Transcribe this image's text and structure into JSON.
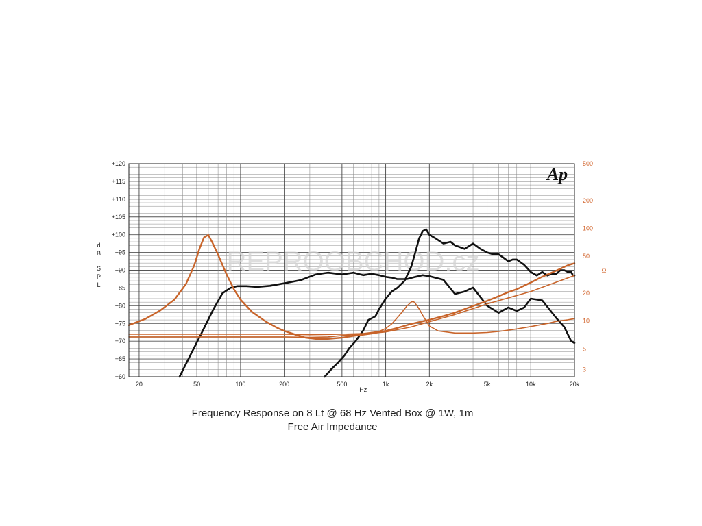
{
  "chart_data": {
    "type": "line",
    "title": "Frequency Response on 8 Lt @ 68 Hz Vented Box @ 1W, 1m",
    "subtitle": "Free Air Impedance",
    "xlabel": "Hz",
    "ylabel": [
      "d",
      "B",
      "S",
      "P",
      "L"
    ],
    "y2label": "Ω",
    "logo": "Ap",
    "watermark": "REPROOBCHOD.cz",
    "x_scale": "log",
    "xlim": [
      17,
      20000
    ],
    "ylim": [
      60,
      120
    ],
    "y2_scale": "log",
    "y2lim": [
      2.5,
      500
    ],
    "grid": true,
    "colors": {
      "spl": "#111111",
      "impedance": "#c8642a",
      "left_ticks": "#222222",
      "right_ticks": "#d2652d"
    },
    "x_ticks": [
      {
        "value": 20,
        "label": "20"
      },
      {
        "value": 50,
        "label": "50"
      },
      {
        "value": 100,
        "label": "100"
      },
      {
        "value": 200,
        "label": "200"
      },
      {
        "value": 500,
        "label": "500"
      },
      {
        "value": 1000,
        "label": "1k"
      },
      {
        "value": 2000,
        "label": "2k"
      },
      {
        "value": 5000,
        "label": "5k"
      },
      {
        "value": 10000,
        "label": "10k"
      },
      {
        "value": 20000,
        "label": "20k"
      }
    ],
    "y_ticks": [
      {
        "value": 120,
        "label": "+120"
      },
      {
        "value": 115,
        "label": "+115"
      },
      {
        "value": 110,
        "label": "+110"
      },
      {
        "value": 105,
        "label": "+105"
      },
      {
        "value": 100,
        "label": "+100"
      },
      {
        "value": 95,
        "label": "+95"
      },
      {
        "value": 90,
        "label": "+90"
      },
      {
        "value": 85,
        "label": "+85"
      },
      {
        "value": 80,
        "label": "+80"
      },
      {
        "value": 75,
        "label": "+75"
      },
      {
        "value": 70,
        "label": "+70"
      },
      {
        "value": 65,
        "label": "+65"
      },
      {
        "value": 60,
        "label": "+60"
      }
    ],
    "y2_ticks": [
      {
        "value": 500,
        "label": "500"
      },
      {
        "value": 200,
        "label": "200"
      },
      {
        "value": 100,
        "label": "100"
      },
      {
        "value": 50,
        "label": "50"
      },
      {
        "value": 20,
        "label": "20"
      },
      {
        "value": 10,
        "label": "10"
      },
      {
        "value": 5,
        "label": "5"
      },
      {
        "value": 3,
        "label": "3"
      }
    ],
    "series": [
      {
        "axis": "left",
        "color": "#111111",
        "width": 2.6,
        "x": [
          38,
          45,
          55,
          65,
          75,
          85,
          95,
          110,
          130,
          160,
          200,
          260,
          330,
          400,
          500,
          600,
          700,
          800,
          900,
          1000,
          1100,
          1200,
          1400,
          1600,
          1800,
          2000,
          2500,
          3000,
          3500,
          4000,
          5000,
          6000,
          7000,
          8000,
          9000,
          10000,
          12000,
          15000,
          17000,
          19000,
          20000
        ],
        "y": [
          60,
          66,
          73,
          79,
          83.5,
          85,
          85.5,
          85.5,
          85.3,
          85.6,
          86.3,
          87.2,
          88.8,
          89.3,
          88.8,
          89.3,
          88.6,
          89,
          88.6,
          88.1,
          87.9,
          87.5,
          87.5,
          88.1,
          88.6,
          88.3,
          87.3,
          83.3,
          84,
          85.1,
          80,
          78,
          79.5,
          78.5,
          79.5,
          82,
          81.5,
          76.5,
          74,
          70,
          69.5
        ]
      },
      {
        "axis": "left",
        "color": "#111111",
        "width": 2.6,
        "x": [
          380,
          420,
          470,
          520,
          560,
          620,
          700,
          760,
          850,
          900,
          1000,
          1100,
          1200,
          1350,
          1500,
          1600,
          1700,
          1800,
          1900,
          2000,
          2200,
          2500,
          2800,
          3000,
          3500,
          4000,
          4500,
          5000,
          5500,
          6000,
          6500,
          7000,
          7500,
          8000,
          9000,
          10000,
          11000,
          12000,
          13000,
          14000,
          15000,
          16000,
          17000,
          18000,
          19000,
          19500,
          20000
        ],
        "y": [
          60,
          62,
          64,
          66,
          68,
          70,
          73,
          76,
          77,
          79,
          82,
          84,
          85,
          87,
          91,
          95,
          99,
          101,
          101.5,
          100,
          99,
          97.5,
          98,
          97,
          96,
          97.5,
          96,
          95,
          94.5,
          94.5,
          93.5,
          92.5,
          93,
          93,
          91.5,
          89.5,
          88.5,
          89.5,
          88.5,
          89,
          89,
          90,
          90,
          89.5,
          89.5,
          88.5,
          88.5
        ]
      },
      {
        "axis": "right",
        "color": "#c8642a",
        "width": 2.4,
        "x": [
          17,
          22,
          28,
          35,
          42,
          48,
          52,
          56,
          60,
          64,
          70,
          80,
          90,
          100,
          120,
          150,
          180,
          200,
          240,
          280,
          330,
          400,
          500,
          600,
          700,
          800,
          1000,
          1200,
          1500,
          2000,
          2500,
          3000,
          4000,
          5000,
          6000,
          7000,
          8000,
          10000,
          12000,
          15000,
          18000,
          20000
        ],
        "y": [
          9,
          10.5,
          13,
          17,
          25,
          40,
          60,
          80,
          85,
          70,
          52,
          32,
          22,
          17,
          12.5,
          9.8,
          8.4,
          7.8,
          7.1,
          6.6,
          6.4,
          6.4,
          6.6,
          6.9,
          7.1,
          7.3,
          7.8,
          8.4,
          9.3,
          10.3,
          11.3,
          12.3,
          14.5,
          16.5,
          18.5,
          20.5,
          22,
          26,
          30,
          35,
          40,
          42
        ]
      },
      {
        "axis": "right",
        "color": "#c8642a",
        "width": 1.6,
        "x": [
          17,
          50,
          100,
          200,
          300,
          500,
          700,
          900,
          1000,
          1100,
          1200,
          1300,
          1400,
          1500,
          1550,
          1600,
          1700,
          1800,
          2000,
          2300,
          3000,
          4000,
          5000,
          6000,
          8000,
          10000,
          13000,
          15000,
          18000,
          20000
        ],
        "y": [
          7.2,
          7.2,
          7.2,
          7.2,
          7.1,
          7.2,
          7.3,
          7.7,
          8.3,
          9.3,
          10.8,
          12.5,
          14.5,
          16,
          16.3,
          15.5,
          13.5,
          11.5,
          8.8,
          7.8,
          7.4,
          7.4,
          7.5,
          7.7,
          8.2,
          8.7,
          9.4,
          9.9,
          10.3,
          10.6
        ]
      },
      {
        "axis": "left",
        "color": "#c8642a",
        "width": 1.6,
        "x": [
          17,
          100,
          200,
          300,
          400,
          500,
          700,
          1000,
          1500,
          2000,
          3000,
          5000,
          10000,
          20000
        ],
        "y": [
          71.2,
          71.2,
          71.2,
          71.1,
          71.2,
          71.6,
          72,
          72.6,
          74,
          75.5,
          77.5,
          80.5,
          84,
          88.5
        ]
      }
    ]
  }
}
